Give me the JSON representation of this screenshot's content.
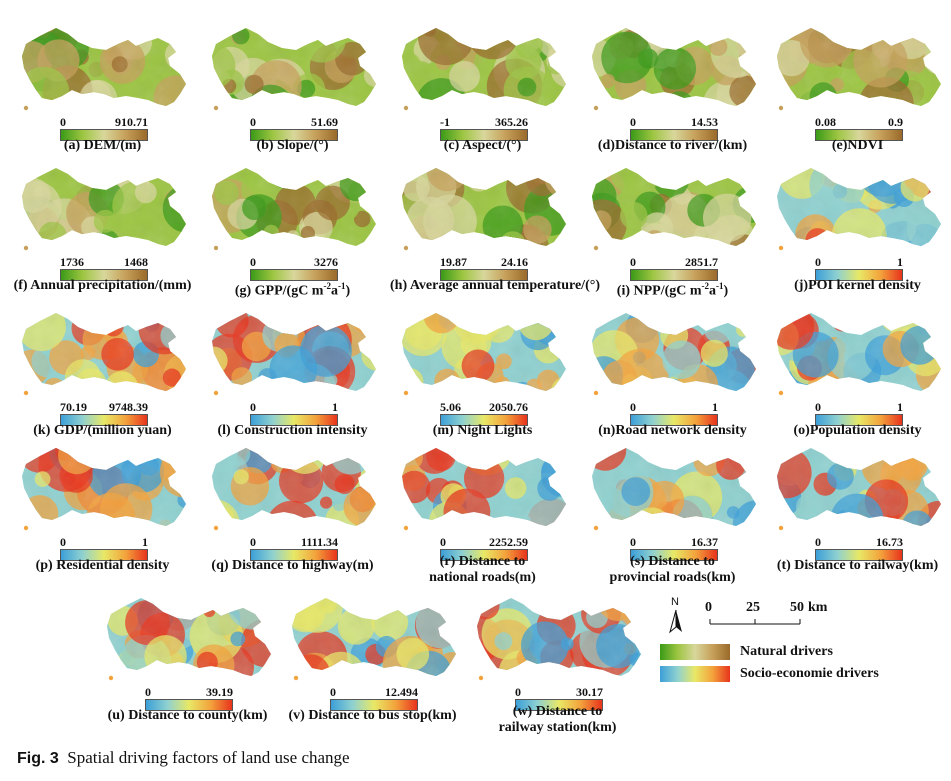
{
  "figure_caption": {
    "label": "Fig. 3",
    "text": "Spatial driving factors of land use change"
  },
  "legend_key": {
    "natural": {
      "label": "Natural drivers",
      "colors": [
        "#3a9a17",
        "#9cc541",
        "#d8d79b",
        "#c6a05a",
        "#9a6a2a"
      ]
    },
    "socio": {
      "label": "Socio-economie drivers",
      "colors": [
        "#3c9fd8",
        "#8fd1d0",
        "#e8e866",
        "#f3a33c",
        "#e8341c"
      ]
    }
  },
  "scale_bar": {
    "ticks": [
      "0",
      "25",
      "50"
    ],
    "unit": "km",
    "north": "N"
  },
  "panels": [
    {
      "id": "a",
      "caption": "(a) DEM/(m)",
      "min": "0",
      "max": "910.71",
      "type": "natural"
    },
    {
      "id": "b",
      "caption": "(b) Slope/(°)",
      "min": "0",
      "max": "51.69",
      "type": "natural"
    },
    {
      "id": "c",
      "caption": "(c) Aspect/(°)",
      "min": "-1",
      "max": "365.26",
      "type": "natural"
    },
    {
      "id": "d",
      "caption": "(d)Distance to river/(km)",
      "min": "0",
      "max": "14.53",
      "type": "natural"
    },
    {
      "id": "e",
      "caption": "(e)NDVI",
      "min": "0.08",
      "max": "0.9",
      "type": "natural"
    },
    {
      "id": "f",
      "caption": "(f) Annual precipitation/(mm)",
      "min": "1736",
      "max": "1468",
      "type": "natural"
    },
    {
      "id": "g",
      "caption_main": "(g) GPP/(gC m",
      "caption_sup": "-2",
      "caption_mid": "a",
      "caption_sup2": "-1",
      "caption_end": ")",
      "min": "0",
      "max": "3276",
      "type": "natural"
    },
    {
      "id": "h",
      "caption": "(h) Average annual temperature/(°)",
      "min": "19.87",
      "max": "24.16",
      "type": "natural"
    },
    {
      "id": "i",
      "caption_main": "(i) NPP/(gC m",
      "caption_sup": "-2",
      "caption_mid": "a",
      "caption_sup2": "-1",
      "caption_end": ")",
      "min": "0",
      "max": "2851.7",
      "type": "natural"
    },
    {
      "id": "j",
      "caption": "(j)POI kernel density",
      "min": "0",
      "max": "1",
      "type": "socio"
    },
    {
      "id": "k",
      "caption": "(k) GDP/(million yuan)",
      "min": "70.19",
      "max": "9748.39",
      "type": "socio"
    },
    {
      "id": "l",
      "caption": "(l) Construction intensity",
      "min": "0",
      "max": "1",
      "type": "socio"
    },
    {
      "id": "m",
      "caption": "(m) Night Lights",
      "min": "5.06",
      "max": "2050.76",
      "type": "socio"
    },
    {
      "id": "n",
      "caption": "(n)Road network density",
      "min": "0",
      "max": "1",
      "type": "socio"
    },
    {
      "id": "o",
      "caption": "(o)Population density",
      "min": "0",
      "max": "1",
      "type": "socio"
    },
    {
      "id": "p",
      "caption": "(p) Residential density",
      "min": "0",
      "max": "1",
      "type": "socio"
    },
    {
      "id": "q",
      "caption": "(q) Distance to highway(m)",
      "min": "0",
      "max": "1111.34",
      "type": "socio"
    },
    {
      "id": "r",
      "caption_l1": "(r) Distance to",
      "caption_l2": "national roads(m)",
      "min": "0",
      "max": "2252.59",
      "type": "socio"
    },
    {
      "id": "s",
      "caption_l1": "(s) Distance to",
      "caption_l2": "provincial roads(km)",
      "min": "0",
      "max": "16.37",
      "type": "socio"
    },
    {
      "id": "t",
      "caption": "(t) Distance to railway(km)",
      "min": "0",
      "max": "16.73",
      "type": "socio"
    },
    {
      "id": "u",
      "caption": "(u) Distance to county(km)",
      "min": "0",
      "max": "39.19",
      "type": "socio"
    },
    {
      "id": "v",
      "caption": "(v) Distance to bus stop(km)",
      "min": "0",
      "max": "12.494",
      "type": "socio"
    },
    {
      "id": "w",
      "caption_l1": "(w) Distance to",
      "caption_l2": "railway station(km)",
      "min": "0",
      "max": "30.17",
      "type": "socio"
    }
  ]
}
